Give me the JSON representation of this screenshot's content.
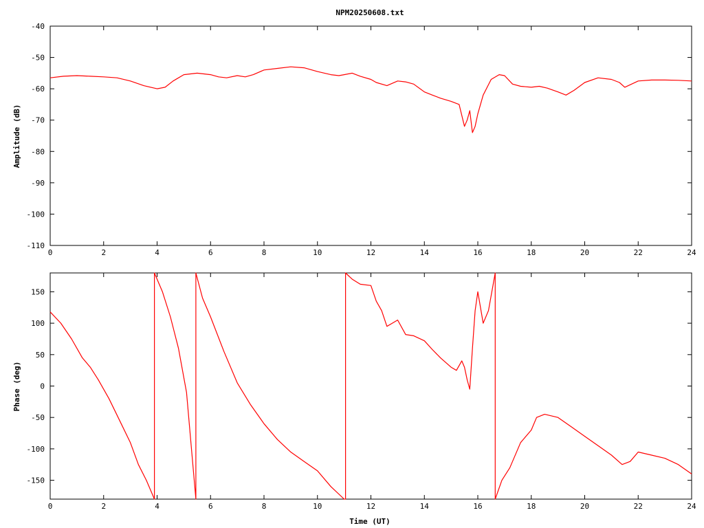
{
  "page": {
    "title": "NPM20250608.txt"
  },
  "colors": {
    "series": "#ff0000",
    "axes": "#000000",
    "background": "#ffffff"
  },
  "chart_data": [
    {
      "type": "line",
      "title": "NPM20250608.txt",
      "xlabel": "",
      "ylabel": "Amplitude (dB)",
      "xlim": [
        0,
        24
      ],
      "ylim": [
        -110,
        -40
      ],
      "xticks": [
        0,
        2,
        4,
        6,
        8,
        10,
        12,
        14,
        16,
        18,
        20,
        22,
        24
      ],
      "yticks": [
        -40,
        -50,
        -60,
        -70,
        -80,
        -90,
        -100,
        -110
      ],
      "grid": false,
      "series": [
        {
          "x": [
            0,
            0.5,
            1,
            1.5,
            2,
            2.5,
            3,
            3.5,
            4,
            4.3,
            4.6,
            5,
            5.5,
            6,
            6.3,
            6.6,
            7,
            7.3,
            7.6,
            8,
            8.5,
            9,
            9.5,
            10,
            10.5,
            10.8,
            11,
            11.3,
            11.6,
            12,
            12.2,
            12.6,
            13,
            13.3,
            13.6,
            14,
            14.3,
            14.6,
            15,
            15.3,
            15.5,
            15.6,
            15.7,
            15.8,
            15.9,
            16,
            16.2,
            16.5,
            16.8,
            17,
            17.3,
            17.6,
            18,
            18.3,
            18.6,
            19,
            19.3,
            19.6,
            20,
            20.5,
            21,
            21.3,
            21.5,
            22,
            22.5,
            23,
            23.5,
            24
          ],
          "y": [
            -56.5,
            -56,
            -55.8,
            -56,
            -56.2,
            -56.5,
            -57.5,
            -59,
            -60,
            -59.5,
            -57.5,
            -55.5,
            -55,
            -55.5,
            -56.2,
            -56.5,
            -55.8,
            -56.2,
            -55.5,
            -54,
            -53.5,
            -53,
            -53.3,
            -54.5,
            -55.5,
            -55.8,
            -55.5,
            -55,
            -56,
            -57,
            -58,
            -59,
            -57.5,
            -57.8,
            -58.5,
            -61,
            -62,
            -63,
            -64,
            -65,
            -72,
            -70,
            -67,
            -74,
            -72,
            -68,
            -62,
            -57,
            -55.5,
            -55.8,
            -58.5,
            -59.2,
            -59.5,
            -59.2,
            -59.8,
            -61,
            -62,
            -60.5,
            -58,
            -56.5,
            -57,
            -58,
            -59.5,
            -57.5,
            -57.2,
            -57.2,
            -57.3,
            -57.5
          ]
        }
      ]
    },
    {
      "type": "line",
      "title": "",
      "xlabel": "Time (UT)",
      "ylabel": "Phase (deg)",
      "xlim": [
        0,
        24
      ],
      "ylim": [
        -180,
        180
      ],
      "xticks": [
        0,
        2,
        4,
        6,
        8,
        10,
        12,
        14,
        16,
        18,
        20,
        22,
        24
      ],
      "yticks": [
        150,
        100,
        50,
        0,
        -50,
        -100,
        -150
      ],
      "grid": false,
      "series": [
        {
          "x": [
            0,
            0.4,
            0.8,
            1.2,
            1.5,
            1.8,
            2.2,
            2.6,
            3,
            3.3,
            3.6,
            3.9,
            3.9,
            4.2,
            4.5,
            4.8,
            5.1,
            5.45,
            5.45,
            5.7,
            6,
            6.5,
            7,
            7.5,
            8,
            8.5,
            9,
            9.5,
            10,
            10.5,
            11,
            11.05,
            11.05,
            11.3,
            11.6,
            12,
            12.2,
            12.4,
            12.6,
            12.8,
            13,
            13.3,
            13.6,
            14,
            14.3,
            14.6,
            15,
            15.2,
            15.4,
            15.5,
            15.6,
            15.7,
            15.8,
            15.9,
            16,
            16.2,
            16.4,
            16.65,
            16.65,
            16.9,
            17.2,
            17.6,
            18,
            18.2,
            18.5,
            19,
            19.5,
            20,
            20.5,
            21,
            21.4,
            21.7,
            22,
            22.5,
            23,
            23.5,
            24
          ],
          "y": [
            118,
            100,
            75,
            45,
            30,
            10,
            -20,
            -55,
            -90,
            -125,
            -150,
            -180,
            180,
            150,
            110,
            60,
            -10,
            -180,
            180,
            140,
            110,
            55,
            5,
            -30,
            -60,
            -85,
            -105,
            -120,
            -135,
            -160,
            -180,
            -180,
            180,
            170,
            162,
            160,
            135,
            120,
            95,
            100,
            105,
            82,
            80,
            72,
            58,
            45,
            30,
            25,
            40,
            30,
            10,
            -5,
            60,
            120,
            150,
            100,
            120,
            180,
            -180,
            -150,
            -130,
            -90,
            -70,
            -50,
            -45,
            -50,
            -65,
            -80,
            -95,
            -110,
            -125,
            -120,
            -105,
            -110,
            -115,
            -125,
            -140
          ]
        }
      ]
    }
  ]
}
